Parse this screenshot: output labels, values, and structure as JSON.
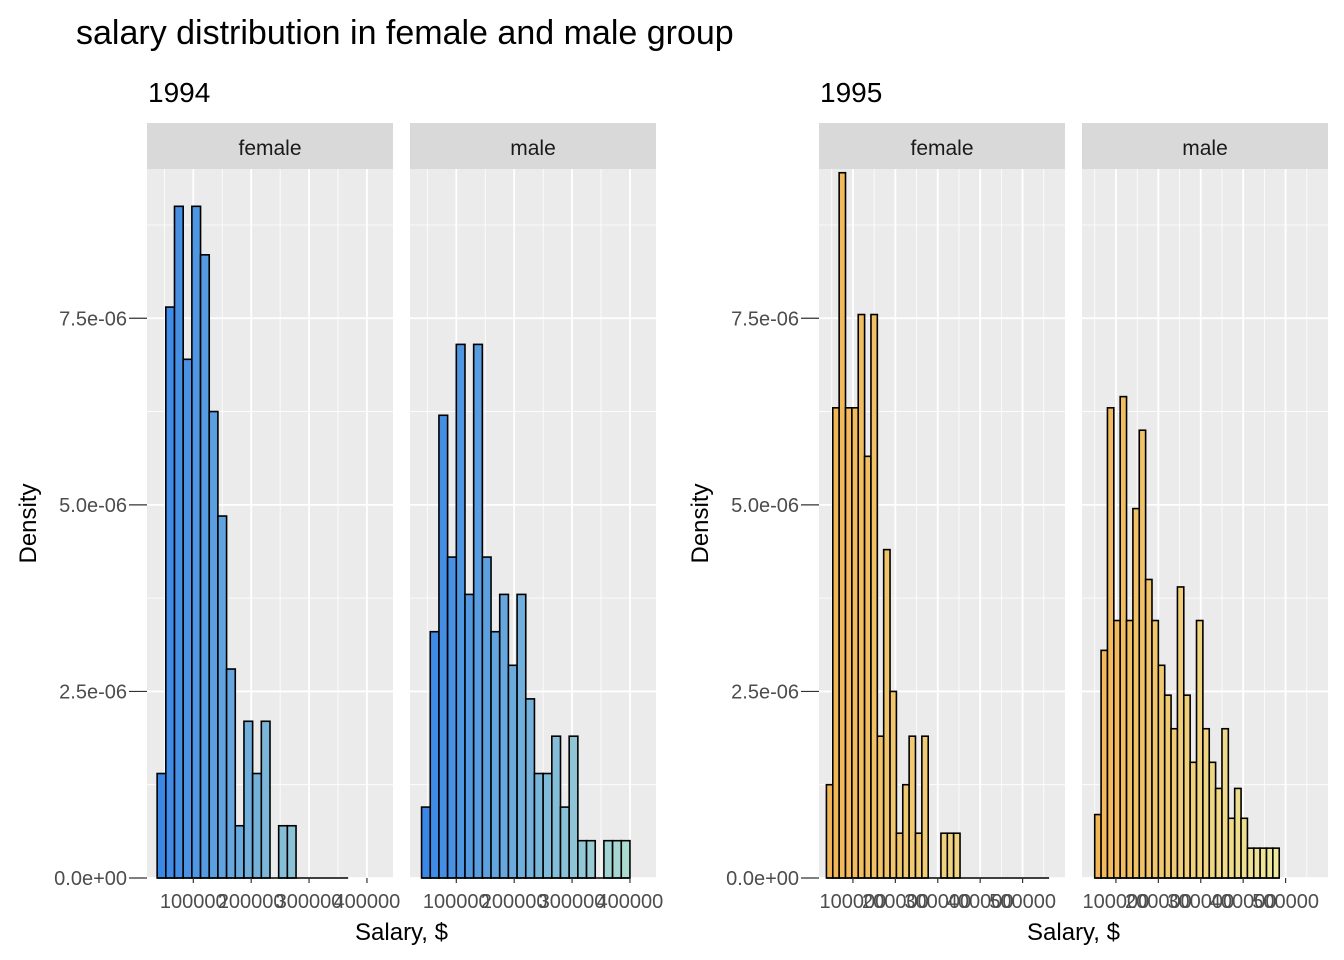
{
  "title": "salary distribution in female and male group",
  "chart_data": [
    {
      "type": "bar",
      "title": "1994",
      "xlabel": "Salary, $",
      "ylabel": "Density",
      "ylim": [
        0,
        9.5e-06
      ],
      "yticks": [
        0,
        2.5e-06,
        5e-06,
        7.5e-06
      ],
      "ytick_labels": [
        "0.0e+00",
        "2.5e-06",
        "5.0e-06",
        "7.5e-06"
      ],
      "xticks": [
        100000,
        200000,
        300000,
        400000
      ],
      "xtick_labels": [
        "100000",
        "200000",
        "300000",
        "400000"
      ],
      "xlim": [
        20000,
        445000
      ],
      "bin_width": 15000,
      "grid": true,
      "fill_palette": [
        "#3a87e6",
        "#abdad0"
      ],
      "panels": [
        {
          "label": "female",
          "bin_start": 37500,
          "values": [
            1.4e-06,
            7.65e-06,
            9e-06,
            6.95e-06,
            9e-06,
            8.35e-06,
            6.25e-06,
            4.85e-06,
            2.8e-06,
            7e-07,
            2.1e-06,
            1.4e-06,
            2.1e-06,
            0,
            7e-07,
            7e-07,
            0,
            0,
            0,
            0,
            0,
            0
          ]
        },
        {
          "label": "male",
          "bin_start": 40000,
          "values": [
            9.5e-07,
            3.3e-06,
            6.2e-06,
            4.3e-06,
            7.15e-06,
            3.8e-06,
            7.15e-06,
            4.3e-06,
            3.3e-06,
            3.8e-06,
            2.85e-06,
            3.8e-06,
            2.4e-06,
            1.4e-06,
            1.4e-06,
            1.9e-06,
            9.5e-07,
            1.9e-06,
            5e-07,
            5e-07,
            0,
            5e-07,
            5e-07,
            5e-07
          ]
        }
      ]
    },
    {
      "type": "bar",
      "title": "1995",
      "xlabel": "Salary, $",
      "ylabel": "Density",
      "ylim": [
        0,
        9.5e-06
      ],
      "yticks": [
        0,
        2.5e-06,
        5e-06,
        7.5e-06
      ],
      "ytick_labels": [
        "0.0e+00",
        "2.5e-06",
        "5.0e-06",
        "7.5e-06"
      ],
      "xticks": [
        100000,
        200000,
        300000,
        400000,
        500000
      ],
      "xtick_labels": [
        "100000",
        "200000",
        "300000",
        "400000",
        "500000"
      ],
      "xlim": [
        20000,
        600000
      ],
      "bin_width": 15000,
      "grid": true,
      "fill_palette": [
        "#f2b657",
        "#ede89c"
      ],
      "panels": [
        {
          "label": "female",
          "bin_start": 37500,
          "values": [
            1.25e-06,
            6.3e-06,
            9.45e-06,
            6.3e-06,
            6.3e-06,
            7.55e-06,
            5.65e-06,
            7.55e-06,
            1.9e-06,
            4.4e-06,
            2.5e-06,
            6e-07,
            1.25e-06,
            1.9e-06,
            6e-07,
            1.9e-06,
            0,
            0,
            6e-07,
            6e-07,
            6e-07,
            0,
            0,
            0,
            0,
            0,
            0,
            0,
            0,
            0,
            0,
            0,
            0,
            0,
            0
          ]
        },
        {
          "label": "male",
          "bin_start": 50000,
          "values": [
            8.5e-07,
            3.05e-06,
            6.3e-06,
            3.45e-06,
            6.45e-06,
            3.45e-06,
            4.95e-06,
            6e-06,
            4e-06,
            3.45e-06,
            2.85e-06,
            2.45e-06,
            2e-06,
            3.9e-06,
            2.45e-06,
            1.55e-06,
            3.45e-06,
            2e-06,
            1.55e-06,
            1.2e-06,
            2e-06,
            8e-07,
            1.2e-06,
            8e-07,
            4e-07,
            4e-07,
            4e-07,
            4e-07,
            4e-07
          ]
        }
      ]
    }
  ]
}
